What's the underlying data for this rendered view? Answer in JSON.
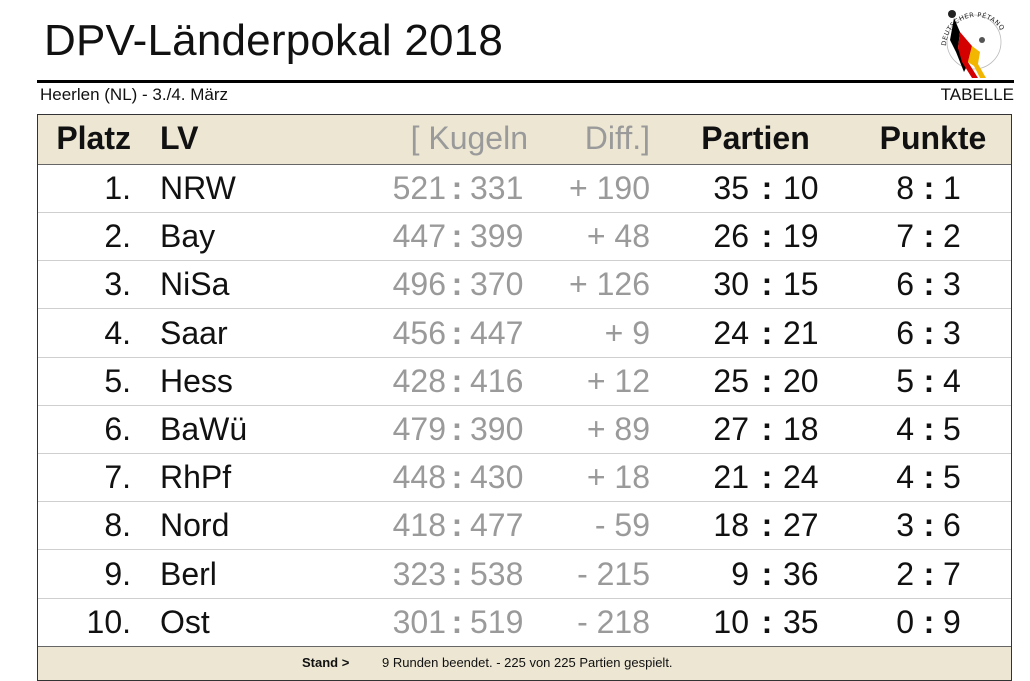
{
  "header": {
    "title": "DPV-Länderpokal 2018",
    "location": "Heerlen (NL) - 3./4. März",
    "label_right": "TABELLE",
    "logo_text": "DEUTSCHER PÉTANQUE VERBAND"
  },
  "table": {
    "columns": {
      "platz": "Platz",
      "lv": "LV",
      "kugeln": "[ Kugeln",
      "diff": "Diff.]",
      "partien": "Partien",
      "punkte": "Punkte"
    },
    "separator": ":",
    "rows": [
      {
        "platz": "1.",
        "lv": "NRW",
        "kug_a": "521",
        "kug_b": "331",
        "diff": "+ 190",
        "par_a": "35",
        "par_b": "10",
        "pkt_a": "8",
        "pkt_b": "1"
      },
      {
        "platz": "2.",
        "lv": "Bay",
        "kug_a": "447",
        "kug_b": "399",
        "diff": "+ 48",
        "par_a": "26",
        "par_b": "19",
        "pkt_a": "7",
        "pkt_b": "2"
      },
      {
        "platz": "3.",
        "lv": "NiSa",
        "kug_a": "496",
        "kug_b": "370",
        "diff": "+ 126",
        "par_a": "30",
        "par_b": "15",
        "pkt_a": "6",
        "pkt_b": "3"
      },
      {
        "platz": "4.",
        "lv": "Saar",
        "kug_a": "456",
        "kug_b": "447",
        "diff": "+ 9",
        "par_a": "24",
        "par_b": "21",
        "pkt_a": "6",
        "pkt_b": "3"
      },
      {
        "platz": "5.",
        "lv": "Hess",
        "kug_a": "428",
        "kug_b": "416",
        "diff": "+ 12",
        "par_a": "25",
        "par_b": "20",
        "pkt_a": "5",
        "pkt_b": "4"
      },
      {
        "platz": "6.",
        "lv": "BaWü",
        "kug_a": "479",
        "kug_b": "390",
        "diff": "+ 89",
        "par_a": "27",
        "par_b": "18",
        "pkt_a": "4",
        "pkt_b": "5"
      },
      {
        "platz": "7.",
        "lv": "RhPf",
        "kug_a": "448",
        "kug_b": "430",
        "diff": "+ 18",
        "par_a": "21",
        "par_b": "24",
        "pkt_a": "4",
        "pkt_b": "5"
      },
      {
        "platz": "8.",
        "lv": "Nord",
        "kug_a": "418",
        "kug_b": "477",
        "diff": "- 59",
        "par_a": "18",
        "par_b": "27",
        "pkt_a": "3",
        "pkt_b": "6"
      },
      {
        "platz": "9.",
        "lv": "Berl",
        "kug_a": "323",
        "kug_b": "538",
        "diff": "- 215",
        "par_a": "9",
        "par_b": "36",
        "pkt_a": "2",
        "pkt_b": "7"
      },
      {
        "platz": "10.",
        "lv": "Ost",
        "kug_a": "301",
        "kug_b": "519",
        "diff": "- 218",
        "par_a": "10",
        "par_b": "35",
        "pkt_a": "0",
        "pkt_b": "9"
      }
    ]
  },
  "footer": {
    "label": "Stand >",
    "text": "9 Runden beendet. - 225 von 225 Partien gespielt."
  },
  "colors": {
    "header_bg": "#ece6d3",
    "muted_text": "#9a9a9a",
    "logo_black": "#000000",
    "logo_red": "#d40000",
    "logo_gold": "#f2b600"
  }
}
